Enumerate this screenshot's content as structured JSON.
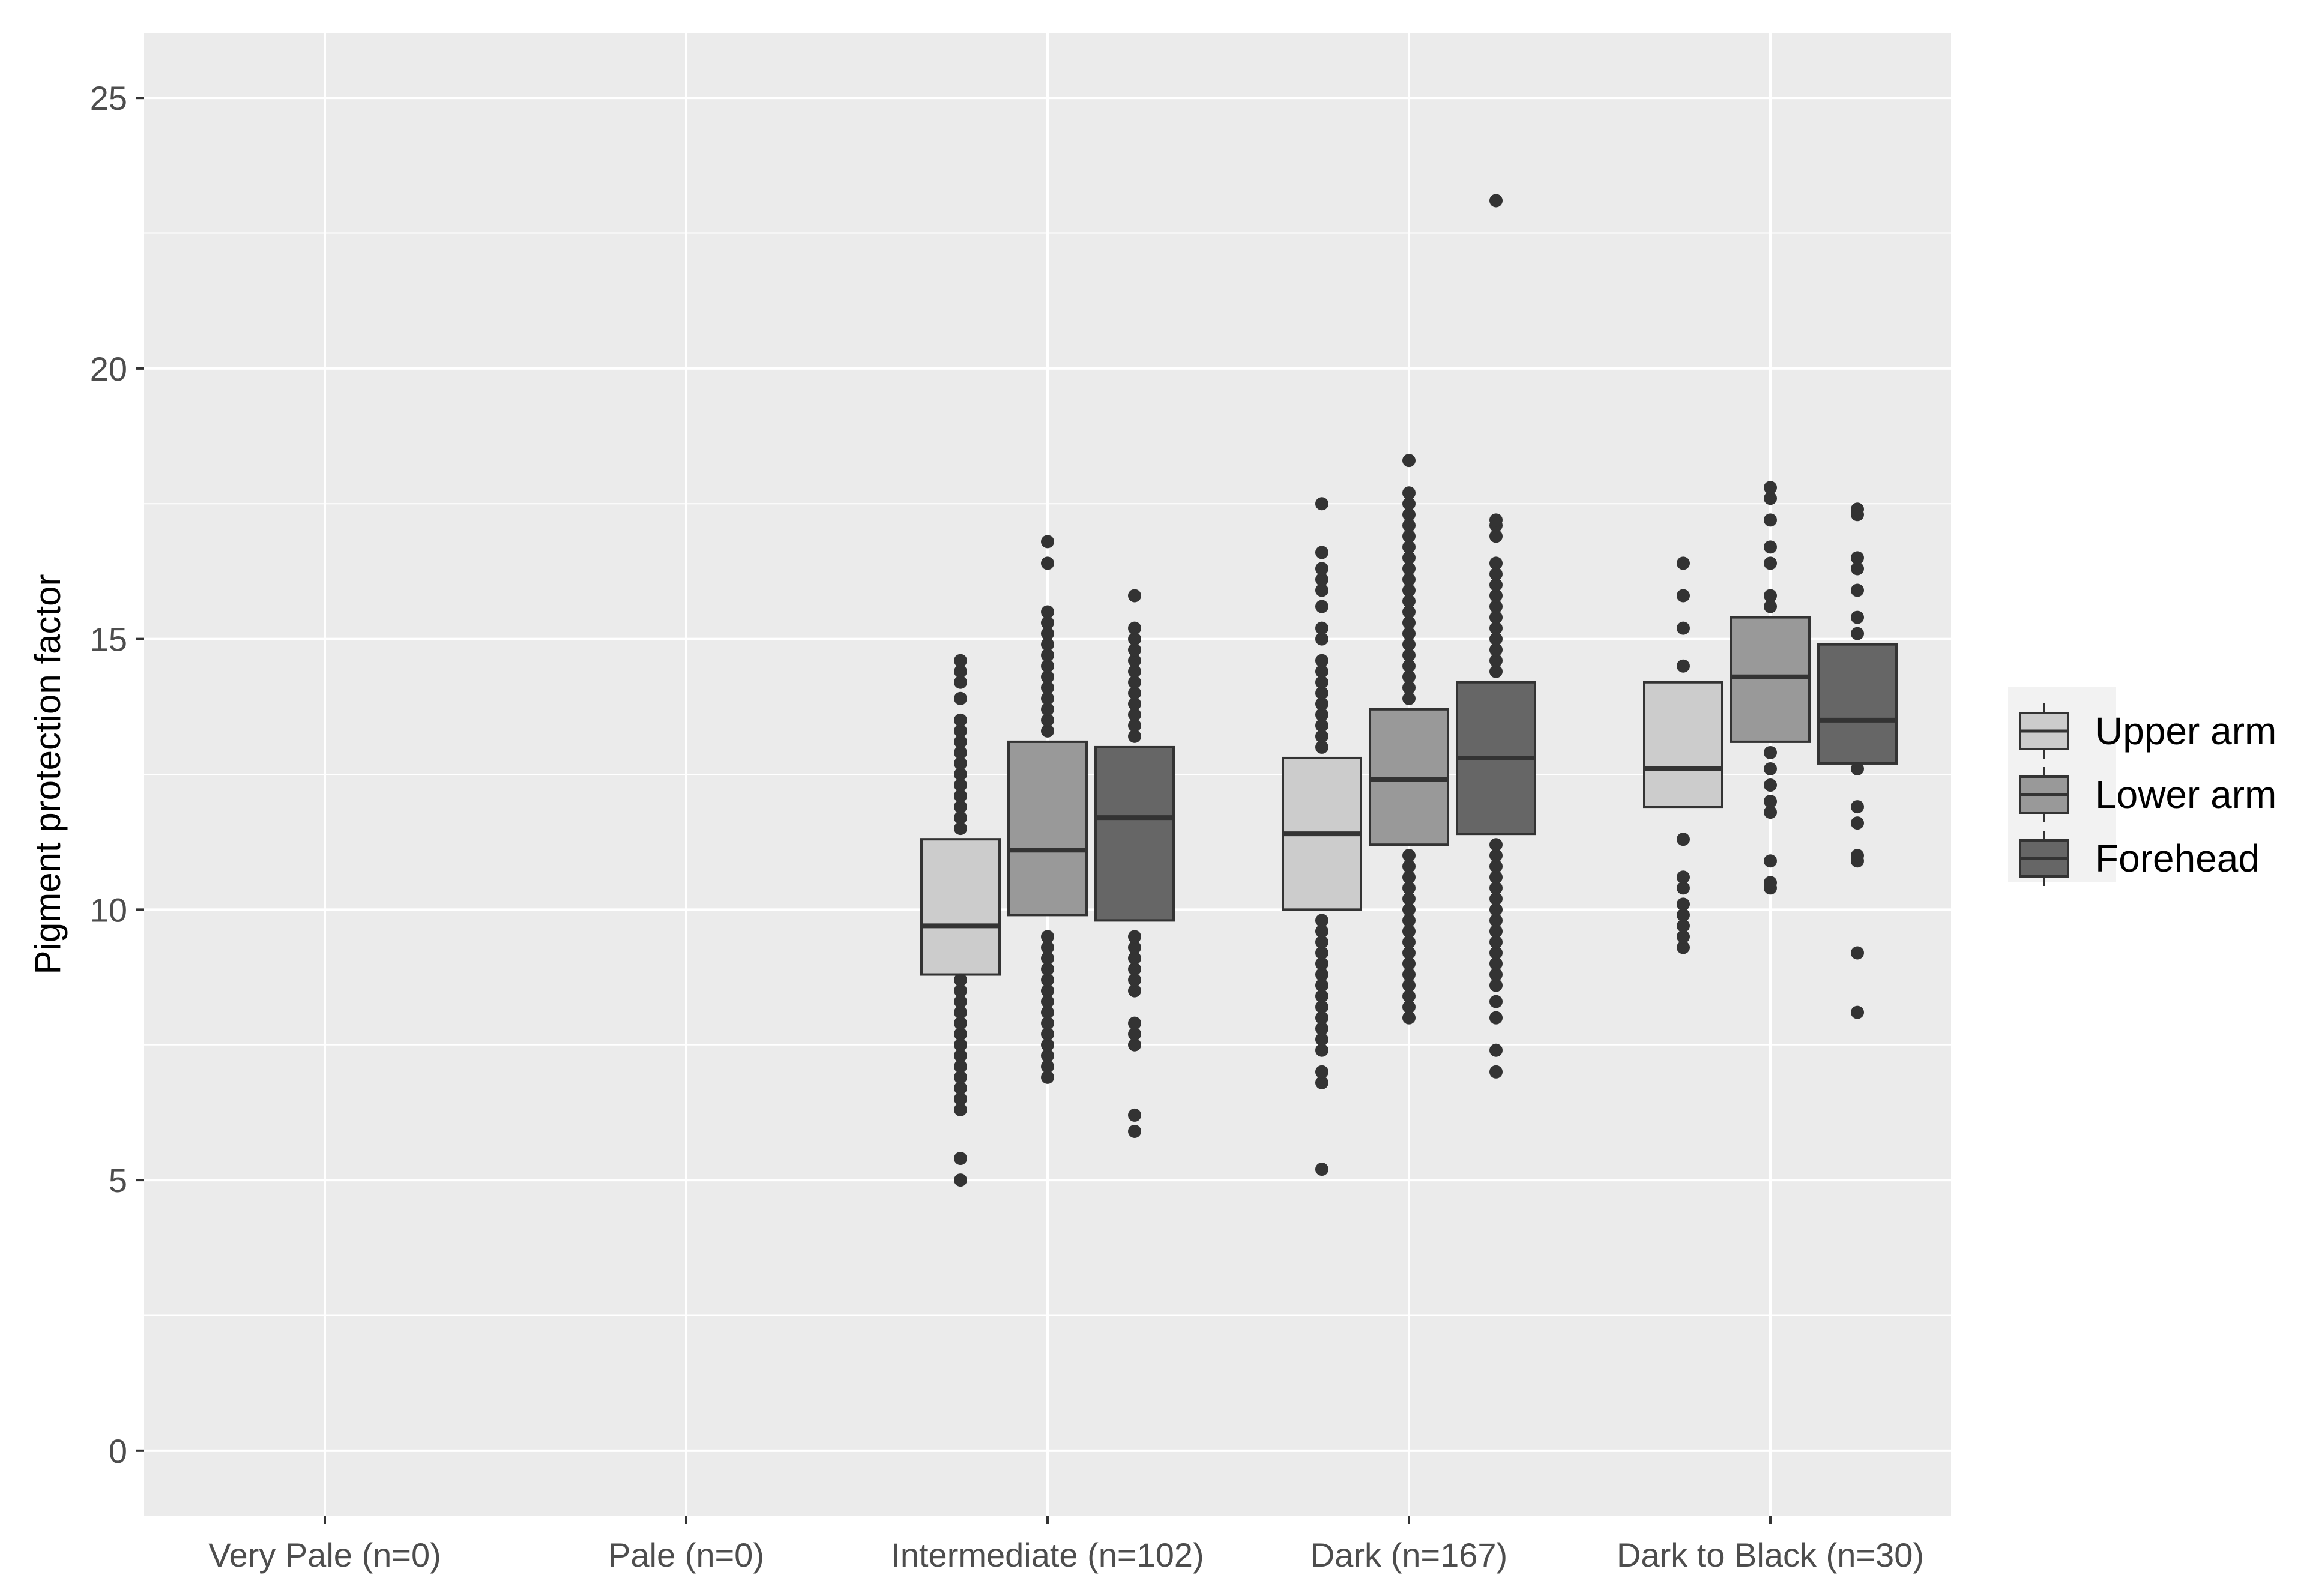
{
  "chart_data": {
    "type": "box",
    "ylabel": "Pigment protection factor",
    "xlabel": "",
    "ylim": [
      -1.2,
      26.2
    ],
    "yticks": [
      0,
      5,
      10,
      15,
      20,
      25
    ],
    "grid": true,
    "legend_position": "right",
    "categories": [
      "Very Pale (n=0)",
      "Pale (n=0)",
      "Intermediate (n=102)",
      "Dark (n=167)",
      "Dark to Black (n=30)"
    ],
    "series": [
      {
        "name": "Upper arm",
        "color": "#cccccc",
        "boxes": [
          null,
          null,
          {
            "q1": 8.8,
            "median": 9.7,
            "q3": 11.3,
            "outliers": [
              5.0,
              5.4,
              6.3,
              6.5,
              6.7,
              6.9,
              7.1,
              7.3,
              7.5,
              7.7,
              7.9,
              8.1,
              8.3,
              8.5,
              8.7,
              11.5,
              11.7,
              11.9,
              12.1,
              12.3,
              12.5,
              12.7,
              12.9,
              13.1,
              13.3,
              13.5,
              13.9,
              14.2,
              14.4,
              14.6
            ]
          },
          {
            "q1": 10.0,
            "median": 11.4,
            "q3": 12.8,
            "outliers": [
              5.2,
              6.8,
              7.0,
              7.4,
              7.6,
              7.8,
              8.0,
              8.2,
              8.4,
              8.6,
              8.8,
              9.0,
              9.2,
              9.4,
              9.6,
              9.8,
              13.0,
              13.2,
              13.4,
              13.6,
              13.8,
              14.0,
              14.2,
              14.4,
              14.6,
              15.0,
              15.2,
              15.6,
              15.9,
              16.1,
              16.3,
              16.6,
              17.5
            ]
          },
          {
            "q1": 11.9,
            "median": 12.6,
            "q3": 14.2,
            "outliers": [
              9.3,
              9.5,
              9.7,
              9.9,
              10.1,
              10.4,
              10.6,
              11.3,
              14.5,
              15.2,
              15.8,
              16.4
            ]
          }
        ]
      },
      {
        "name": "Lower arm",
        "color": "#999999",
        "boxes": [
          null,
          null,
          {
            "q1": 9.9,
            "median": 11.1,
            "q3": 13.1,
            "outliers": [
              6.9,
              7.1,
              7.3,
              7.5,
              7.7,
              7.9,
              8.1,
              8.3,
              8.5,
              8.7,
              8.9,
              9.1,
              9.3,
              9.5,
              13.3,
              13.5,
              13.7,
              13.9,
              14.1,
              14.3,
              14.5,
              14.7,
              14.9,
              15.1,
              15.3,
              15.5,
              16.4,
              16.8
            ]
          },
          {
            "q1": 11.2,
            "median": 12.4,
            "q3": 13.7,
            "outliers": [
              8.0,
              8.2,
              8.4,
              8.6,
              8.8,
              9.0,
              9.2,
              9.4,
              9.6,
              9.8,
              10.0,
              10.2,
              10.4,
              10.6,
              10.8,
              11.0,
              13.9,
              14.1,
              14.3,
              14.5,
              14.7,
              14.9,
              15.1,
              15.3,
              15.5,
              15.7,
              15.9,
              16.1,
              16.3,
              16.5,
              16.7,
              16.9,
              17.1,
              17.3,
              17.5,
              17.7,
              18.3
            ]
          },
          {
            "q1": 13.1,
            "median": 14.3,
            "q3": 15.4,
            "outliers": [
              10.4,
              10.5,
              10.9,
              11.8,
              12.0,
              12.3,
              12.6,
              12.9,
              15.6,
              15.8,
              16.4,
              16.7,
              17.2,
              17.6,
              17.8
            ]
          }
        ]
      },
      {
        "name": "Forehead",
        "color": "#666666",
        "boxes": [
          null,
          null,
          {
            "q1": 9.8,
            "median": 11.7,
            "q3": 13.0,
            "outliers": [
              5.9,
              6.2,
              7.5,
              7.7,
              7.9,
              8.5,
              8.7,
              8.9,
              9.1,
              9.3,
              9.5,
              13.2,
              13.4,
              13.6,
              13.8,
              14.0,
              14.2,
              14.4,
              14.6,
              14.8,
              15.0,
              15.2,
              15.8
            ]
          },
          {
            "q1": 11.4,
            "median": 12.8,
            "q3": 14.2,
            "outliers": [
              7.0,
              7.4,
              8.0,
              8.3,
              8.6,
              8.8,
              9.0,
              9.2,
              9.4,
              9.6,
              9.8,
              10.0,
              10.2,
              10.4,
              10.6,
              10.8,
              11.0,
              11.2,
              14.4,
              14.6,
              14.8,
              15.0,
              15.2,
              15.4,
              15.6,
              15.8,
              16.0,
              16.2,
              16.4,
              16.9,
              17.1,
              17.2,
              23.1
            ]
          },
          {
            "q1": 12.7,
            "median": 13.5,
            "q3": 14.9,
            "outliers": [
              8.1,
              9.2,
              10.9,
              11.0,
              11.6,
              11.9,
              12.6,
              15.1,
              15.4,
              15.9,
              16.3,
              16.5,
              17.3,
              17.4
            ]
          }
        ]
      }
    ]
  }
}
